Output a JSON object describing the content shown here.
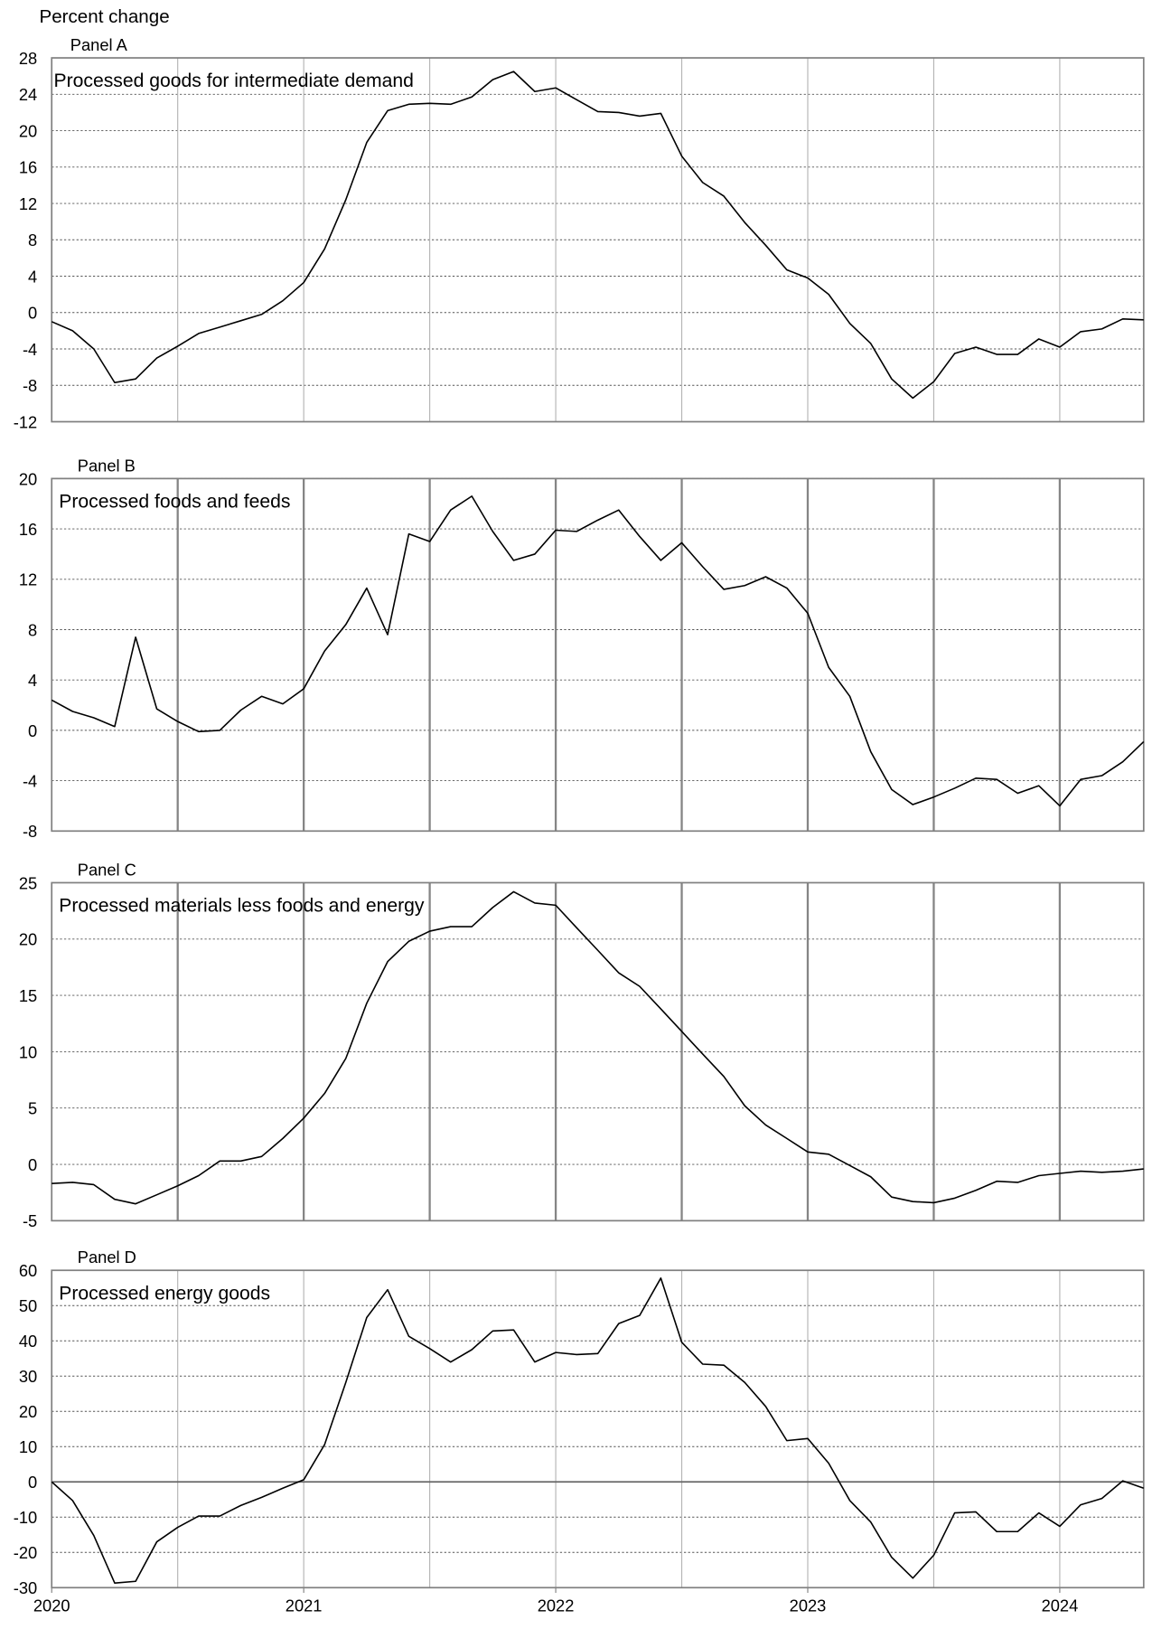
{
  "chart_data": [
    {
      "type": "line",
      "ylabel": "Percent change",
      "panel_label": "Panel A",
      "title": "Processed goods for intermediate demand",
      "x": [
        2020,
        2020.083,
        2020.167,
        2020.25,
        2020.333,
        2020.417,
        2020.5,
        2020.583,
        2020.667,
        2020.75,
        2020.833,
        2020.917,
        2021,
        2021.083,
        2021.167,
        2021.25,
        2021.333,
        2021.417,
        2021.5,
        2021.583,
        2021.667,
        2021.75,
        2021.833,
        2021.917,
        2022,
        2022.083,
        2022.167,
        2022.25,
        2022.333,
        2022.417,
        2022.5,
        2022.583,
        2022.667,
        2022.75,
        2022.833,
        2022.917,
        2023,
        2023.083,
        2023.167,
        2023.25,
        2023.333,
        2023.417,
        2023.5,
        2023.583,
        2023.667,
        2023.75,
        2023.833,
        2023.917,
        2024,
        2024.083,
        2024.167,
        2024.25,
        2024.333
      ],
      "values": [
        -1.0,
        -2.0,
        -4.0,
        -7.7,
        -7.3,
        -5.0,
        -3.7,
        -2.3,
        -1.6,
        -0.9,
        -0.2,
        1.3,
        3.3,
        7.0,
        12.4,
        18.7,
        22.2,
        22.9,
        23.0,
        22.9,
        23.7,
        25.6,
        26.5,
        24.3,
        24.7,
        23.4,
        22.1,
        22.0,
        21.6,
        21.9,
        17.2,
        14.3,
        12.8,
        9.9,
        7.4,
        4.7,
        3.8,
        2.0,
        -1.2,
        -3.4,
        -7.3,
        -9.4,
        -7.6,
        -4.5,
        -3.8,
        -4.6,
        -4.6,
        -2.9,
        -3.8,
        -2.1,
        -1.8,
        -0.7,
        -0.8
      ],
      "color": "#000000",
      "grid_color": "#b4b4b4",
      "grid_width": 1,
      "xlim": [
        2020,
        2024.333
      ],
      "xgrid": [
        2020.5,
        2021,
        2021.5,
        2022,
        2022.5,
        2023,
        2023.5,
        2024
      ],
      "ylim": [
        -12,
        28
      ],
      "yticks": [
        -12,
        -8,
        -4,
        0,
        4,
        8,
        12,
        16,
        20,
        24,
        28
      ],
      "zero_line": false
    },
    {
      "type": "line",
      "panel_label": "Panel B",
      "title": "Processed foods and feeds",
      "x": [
        2020,
        2020.083,
        2020.167,
        2020.25,
        2020.333,
        2020.417,
        2020.5,
        2020.583,
        2020.667,
        2020.75,
        2020.833,
        2020.917,
        2021,
        2021.083,
        2021.167,
        2021.25,
        2021.333,
        2021.417,
        2021.5,
        2021.583,
        2021.667,
        2021.75,
        2021.833,
        2021.917,
        2022,
        2022.083,
        2022.167,
        2022.25,
        2022.333,
        2022.417,
        2022.5,
        2022.583,
        2022.667,
        2022.75,
        2022.833,
        2022.917,
        2023,
        2023.083,
        2023.167,
        2023.25,
        2023.333,
        2023.417,
        2023.5,
        2023.583,
        2023.667,
        2023.75,
        2023.833,
        2023.917,
        2024,
        2024.083,
        2024.167,
        2024.25,
        2024.333
      ],
      "values": [
        2.4,
        1.5,
        1.0,
        0.3,
        7.4,
        1.7,
        0.7,
        -0.1,
        0.0,
        1.6,
        2.7,
        2.1,
        3.3,
        6.3,
        8.4,
        11.3,
        7.6,
        15.6,
        15.0,
        17.5,
        18.6,
        15.8,
        13.5,
        14.0,
        15.9,
        15.8,
        16.7,
        17.5,
        15.4,
        13.5,
        14.9,
        13.0,
        11.2,
        11.5,
        12.2,
        11.3,
        9.3,
        5.0,
        2.7,
        -1.7,
        -4.7,
        -5.9,
        -5.3,
        -4.6,
        -3.8,
        -3.9,
        -5.0,
        -4.4,
        -6.0,
        -3.9,
        -3.6,
        -2.5,
        -0.9
      ],
      "color": "#000000",
      "grid_color": "#858585",
      "grid_width": 2,
      "xlim": [
        2020,
        2024.333
      ],
      "xgrid": [
        2020.5,
        2021,
        2021.5,
        2022,
        2022.5,
        2023,
        2023.5,
        2024
      ],
      "ylim": [
        -8,
        20
      ],
      "yticks": [
        -8,
        -4,
        0,
        4,
        8,
        12,
        16,
        20
      ],
      "zero_line": false
    },
    {
      "type": "line",
      "panel_label": "Panel C",
      "title": "Processed materials less foods and energy",
      "x": [
        2020,
        2020.083,
        2020.167,
        2020.25,
        2020.333,
        2020.417,
        2020.5,
        2020.583,
        2020.667,
        2020.75,
        2020.833,
        2020.917,
        2021,
        2021.083,
        2021.167,
        2021.25,
        2021.333,
        2021.417,
        2021.5,
        2021.583,
        2021.667,
        2021.75,
        2021.833,
        2021.917,
        2022,
        2022.083,
        2022.167,
        2022.25,
        2022.333,
        2022.417,
        2022.5,
        2022.583,
        2022.667,
        2022.75,
        2022.833,
        2022.917,
        2023,
        2023.083,
        2023.167,
        2023.25,
        2023.333,
        2023.417,
        2023.5,
        2023.583,
        2023.667,
        2023.75,
        2023.833,
        2023.917,
        2024,
        2024.083,
        2024.167,
        2024.25,
        2024.333
      ],
      "values": [
        -1.7,
        -1.6,
        -1.8,
        -3.1,
        -3.5,
        -2.7,
        -1.9,
        -1.0,
        0.3,
        0.3,
        0.7,
        2.3,
        4.1,
        6.3,
        9.4,
        14.3,
        18.0,
        19.8,
        20.7,
        21.1,
        21.1,
        22.8,
        24.2,
        23.2,
        23.0,
        21.0,
        19.0,
        17.0,
        15.8,
        13.8,
        11.8,
        9.8,
        7.8,
        5.2,
        3.5,
        2.3,
        1.1,
        0.9,
        -0.1,
        -1.1,
        -2.9,
        -3.3,
        -3.4,
        -3.0,
        -2.3,
        -1.5,
        -1.6,
        -1.0,
        -0.8,
        -0.6,
        -0.7,
        -0.6,
        -0.4
      ],
      "color": "#000000",
      "grid_color": "#858585",
      "grid_width": 2,
      "xlim": [
        2020,
        2024.333
      ],
      "xgrid": [
        2020.5,
        2021,
        2021.5,
        2022,
        2022.5,
        2023,
        2023.5,
        2024
      ],
      "ylim": [
        -5,
        25
      ],
      "yticks": [
        -5,
        0,
        5,
        10,
        15,
        20,
        25
      ],
      "zero_line": false
    },
    {
      "type": "line",
      "panel_label": "Panel D",
      "title": "Processed energy goods",
      "x": [
        2020,
        2020.083,
        2020.167,
        2020.25,
        2020.333,
        2020.417,
        2020.5,
        2020.583,
        2020.667,
        2020.75,
        2020.833,
        2020.917,
        2021,
        2021.083,
        2021.167,
        2021.25,
        2021.333,
        2021.417,
        2021.5,
        2021.583,
        2021.667,
        2021.75,
        2021.833,
        2021.917,
        2022,
        2022.083,
        2022.167,
        2022.25,
        2022.333,
        2022.417,
        2022.5,
        2022.583,
        2022.667,
        2022.75,
        2022.833,
        2022.917,
        2023,
        2023.083,
        2023.167,
        2023.25,
        2023.333,
        2023.417,
        2023.5,
        2023.583,
        2023.667,
        2023.75,
        2023.833,
        2023.917,
        2024,
        2024.083,
        2024.167,
        2024.25,
        2024.333
      ],
      "values": [
        0.0,
        -5.3,
        -15.2,
        -28.7,
        -28.2,
        -17.0,
        -12.9,
        -9.7,
        -9.7,
        -6.7,
        -4.4,
        -1.8,
        0.6,
        10.6,
        28.2,
        46.6,
        54.5,
        41.3,
        37.8,
        34.0,
        37.5,
        42.8,
        43.1,
        34.0,
        36.7,
        36.1,
        36.4,
        44.9,
        47.2,
        57.8,
        39.6,
        33.4,
        33.1,
        28.2,
        21.4,
        11.7,
        12.3,
        5.3,
        -5.3,
        -11.4,
        -21.4,
        -27.3,
        -20.8,
        -8.8,
        -8.5,
        -14.1,
        -14.1,
        -8.8,
        -12.6,
        -6.5,
        -4.7,
        0.3,
        -1.8
      ],
      "color": "#000000",
      "grid_color": "#b4b4b4",
      "grid_width": 1,
      "xlim": [
        2020,
        2024.333
      ],
      "xgrid": [
        2020.5,
        2021,
        2021.5,
        2022,
        2022.5,
        2023,
        2023.5,
        2024
      ],
      "xticks": [
        2020,
        2021,
        2022,
        2023,
        2024
      ],
      "ylim": [
        -30,
        60
      ],
      "yticks": [
        -30,
        -20,
        -10,
        0,
        10,
        20,
        30,
        40,
        50,
        60
      ],
      "zero_line": true
    }
  ]
}
